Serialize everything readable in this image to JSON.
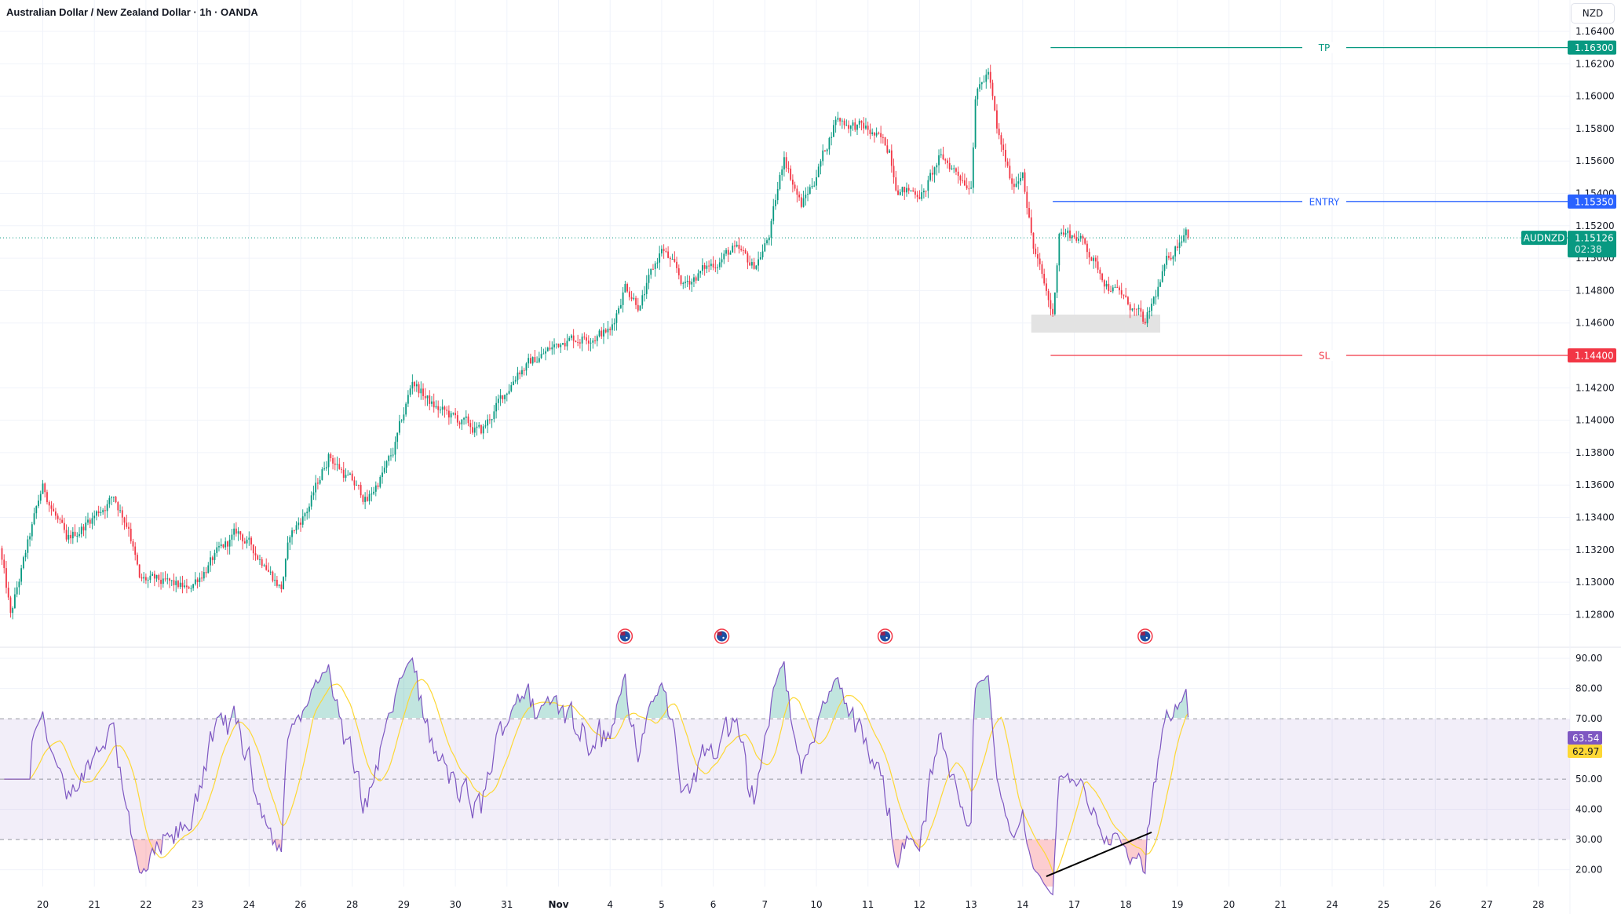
{
  "header": {
    "title": "Australian Dollar / New Zealand Dollar · 1h · OANDA",
    "currency": "NZD"
  },
  "colors": {
    "up": "#089981",
    "down": "#f23645",
    "tp": "#089981",
    "entry": "#2962ff",
    "sl": "#f23645",
    "rsi": "#7e57c2",
    "rsi_ma": "#fdd835",
    "grid": "#f0f3fa"
  },
  "chart_data": {
    "type": "candlestick",
    "symbol": "AUDNZD",
    "last_price": "1.15126",
    "countdown": "02:38",
    "y_ticks": [
      "1.16400",
      "1.16200",
      "1.16000",
      "1.15800",
      "1.15600",
      "1.15400",
      "1.15200",
      "1.15000",
      "1.14800",
      "1.14600",
      "1.14200",
      "1.14000",
      "1.13800",
      "1.13600",
      "1.13400",
      "1.13200",
      "1.13000",
      "1.12800"
    ],
    "x_ticks": [
      "20",
      "21",
      "22",
      "23",
      "24",
      "26",
      "28",
      "29",
      "30",
      "31",
      "Nov",
      "4",
      "5",
      "6",
      "7",
      "10",
      "11",
      "12",
      "13",
      "14",
      "17",
      "18",
      "19",
      "20",
      "21",
      "24",
      "25",
      "26",
      "27",
      "28"
    ],
    "x_tick_dates": [
      "10-20",
      "10-21",
      "10-22",
      "10-23",
      "10-24",
      "10-26",
      "10-28",
      "10-29",
      "10-30",
      "10-31",
      "11-01",
      "11-04",
      "11-05",
      "11-06",
      "11-07",
      "11-10",
      "11-11",
      "11-12",
      "11-13",
      "11-14",
      "11-17",
      "11-18",
      "11-19",
      "11-20",
      "11-21",
      "11-24",
      "11-25",
      "11-26",
      "11-27",
      "11-28"
    ],
    "price_path": [
      [
        "10-19 04:00",
        1.1321
      ],
      [
        "10-19 09:00",
        1.128
      ],
      [
        "10-20 00:00",
        1.136
      ],
      [
        "10-20 11:00",
        1.1325
      ],
      [
        "10-21 09:00",
        1.1353
      ],
      [
        "10-21 16:00",
        1.1334
      ],
      [
        "10-21 21:00",
        1.1302
      ],
      [
        "10-22 19:00",
        1.1296
      ],
      [
        "10-23 19:00",
        1.1331
      ],
      [
        "10-24 07:00",
        1.1312
      ],
      [
        "10-24 15:00",
        1.1296
      ],
      [
        "10-24 19:00",
        1.1328
      ],
      [
        "10-26 04:00",
        1.1347
      ],
      [
        "10-26 13:00",
        1.1379
      ],
      [
        "10-28 07:00",
        1.135
      ],
      [
        "10-28 19:00",
        1.1379
      ],
      [
        "10-29 04:00",
        1.1424
      ],
      [
        "10-29 14:00",
        1.1408
      ],
      [
        "10-30 12:00",
        1.1392
      ],
      [
        "10-31 05:00",
        1.143
      ],
      [
        "11-01 02:00",
        1.1449
      ],
      [
        "11-04 00:00",
        1.1455
      ],
      [
        "11-04 07:00",
        1.1484
      ],
      [
        "11-04 14:00",
        1.1471
      ],
      [
        "11-05 00:00",
        1.1506
      ],
      [
        "11-05 10:00",
        1.1484
      ],
      [
        "11-06 10:00",
        1.1506
      ],
      [
        "11-06 19:00",
        1.1494
      ],
      [
        "11-07 02:00",
        1.1513
      ],
      [
        "11-07 09:00",
        1.1563
      ],
      [
        "11-07 17:00",
        1.1532
      ],
      [
        "11-10 00:00",
        1.1551
      ],
      [
        "11-10 09:00",
        1.1586
      ],
      [
        "11-11 00:00",
        1.1579
      ],
      [
        "11-11 10:00",
        1.1567
      ],
      [
        "11-11 14:00",
        1.1541
      ],
      [
        "11-12 02:00",
        1.1541
      ],
      [
        "11-12 10:00",
        1.1563
      ],
      [
        "11-13 00:00",
        1.1545
      ],
      [
        "11-13 02:00",
        1.1599
      ],
      [
        "11-13 08:00",
        1.1615
      ],
      [
        "11-13 12:00",
        1.1579
      ],
      [
        "11-13 19:00",
        1.1545
      ],
      [
        "11-14 00:00",
        1.1554
      ],
      [
        "11-14 05:00",
        1.1506
      ],
      [
        "11-14 14:00",
        1.1465
      ],
      [
        "11-14 17:00",
        1.1516
      ],
      [
        "11-17 03:00",
        1.1513
      ],
      [
        "11-17 10:00",
        1.1497
      ],
      [
        "11-17 17:00",
        1.1481
      ],
      [
        "11-18 00:00",
        1.1475
      ],
      [
        "11-18 09:00",
        1.1459
      ],
      [
        "11-18 20:00",
        1.15
      ],
      [
        "11-19 04:00",
        1.1519
      ],
      [
        "11-19 05:00",
        1.15126
      ]
    ],
    "levels": [
      {
        "label": "TP",
        "price": 1.163,
        "price_label": "1.16300",
        "from": "11-14 13:00"
      },
      {
        "label": "ENTRY",
        "price": 1.1535,
        "price_label": "1.15350",
        "from": "11-14 14:00"
      },
      {
        "label": "SL",
        "price": 1.144,
        "price_label": "1.14400",
        "from": "11-14 13:00"
      }
    ],
    "zone": {
      "from": "11-14 04:00",
      "to": "11-18 16:00",
      "top": 1.14652,
      "bottom": 1.14541
    },
    "events": [
      {
        "date": "11-04 07:00",
        "icon": "au-flag-icon"
      },
      {
        "date": "11-06 04:00",
        "icon": "au-flag-icon"
      },
      {
        "date": "11-11 08:00",
        "icon": "au-flag-icon"
      },
      {
        "date": "11-18 09:00",
        "icon": "au-flag-icon"
      }
    ],
    "rsi": {
      "y_ticks": [
        "90.00",
        "80.00",
        "70.00",
        "50.00",
        "40.00",
        "30.00",
        "20.00"
      ],
      "upper": 70,
      "middle": 50,
      "lower": 30,
      "value_label": "63.54",
      "ma_label": "62.97",
      "trendline": [
        [
          "11-14 11:00",
          17.8
        ],
        [
          "11-18 12:00",
          32.4
        ]
      ]
    }
  }
}
